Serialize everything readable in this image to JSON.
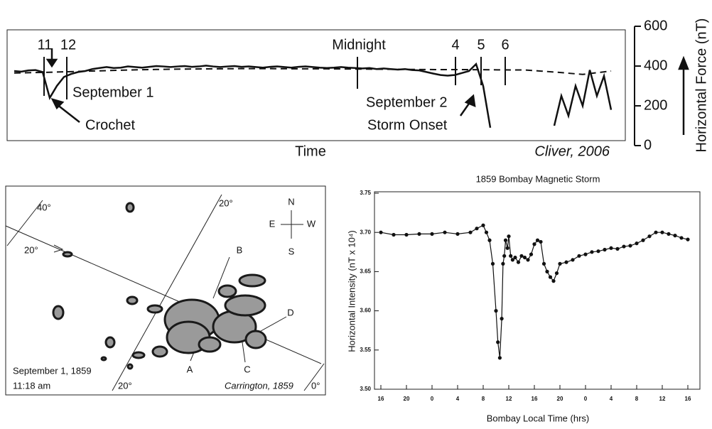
{
  "chart_data": [
    {
      "type": "line",
      "x_label": "Time",
      "y_label": "Horizontal Force (nT)",
      "credit": "Cliver, 2006",
      "event_labels": [
        "11",
        "12",
        "Midnight",
        "4",
        "5",
        "6"
      ],
      "annotations": [
        "September 1",
        "Crochet",
        "September 2",
        "Storm Onset"
      ],
      "ylim": [
        0,
        600
      ],
      "yticks": [
        0,
        200,
        400,
        600
      ],
      "series": [
        {
          "color": "#111111",
          "style": "solid",
          "values": [
            375,
            372,
            378,
            380,
            370,
            240,
            300,
            345,
            360,
            370,
            375,
            385,
            390,
            395,
            390,
            392,
            398,
            395,
            392,
            396,
            400,
            398,
            395,
            398,
            400,
            396,
            398,
            402,
            398,
            395,
            398,
            400,
            396,
            398,
            395,
            392,
            396,
            398,
            395,
            392,
            396,
            398,
            395,
            392,
            390,
            392,
            395,
            392,
            390,
            388,
            390,
            385,
            388,
            385,
            382,
            385,
            380,
            378,
            370,
            362,
            355,
            352,
            355,
            365,
            375,
            410,
            300,
            90,
            null,
            null,
            null,
            null,
            null,
            null,
            null,
            null,
            100,
            250,
            150,
            300,
            200,
            380,
            250,
            350,
            180
          ]
        },
        {
          "color": "#111111",
          "style": "dashed",
          "values": [
            365,
            368,
            372,
            376,
            380,
            383,
            385,
            386,
            387,
            387,
            386,
            386,
            385,
            384,
            383,
            382,
            382,
            381,
            380,
            370,
            358,
            375
          ]
        }
      ]
    },
    {
      "type": "line",
      "title": "1859 Bombay Magnetic Storm",
      "x_label": "Bombay Local Time (hrs)",
      "y_label": "Horizontal Intensity (nT x 10⁴)",
      "color": "#111111",
      "xlim": [
        0,
        48
      ],
      "xticks": [
        {
          "value": 0,
          "label": "16"
        },
        {
          "value": 4,
          "label": "20"
        },
        {
          "value": 8,
          "label": "0"
        },
        {
          "value": 12,
          "label": "4"
        },
        {
          "value": 16,
          "label": "8"
        },
        {
          "value": 20,
          "label": "12"
        },
        {
          "value": 24,
          "label": "16"
        },
        {
          "value": 28,
          "label": "20"
        },
        {
          "value": 32,
          "label": "0"
        },
        {
          "value": 36,
          "label": "4"
        },
        {
          "value": 40,
          "label": "8"
        },
        {
          "value": 44,
          "label": "12"
        },
        {
          "value": 48,
          "label": "16"
        }
      ],
      "ylim": [
        3.5,
        3.75
      ],
      "yticks": [
        {
          "value": 3.5,
          "label": "3.50"
        },
        3.55,
        {
          "value": 3.6,
          "label": "3.60"
        },
        3.65,
        {
          "value": 3.7,
          "label": "3.70"
        },
        3.75
      ],
      "x": [
        0,
        2,
        4,
        6,
        8,
        10,
        12,
        14,
        15,
        16,
        16.5,
        17,
        17.5,
        18,
        18.3,
        18.6,
        18.9,
        19.1,
        19.3,
        19.5,
        19.8,
        20,
        20.3,
        20.6,
        21,
        21.5,
        22,
        22.5,
        23,
        23.5,
        24,
        24.5,
        25,
        25.5,
        26,
        26.5,
        27,
        27.5,
        28,
        29,
        30,
        31,
        32,
        33,
        34,
        35,
        36,
        37,
        38,
        39,
        40,
        41,
        42,
        43,
        44,
        45,
        46,
        47,
        48
      ],
      "values": [
        3.7,
        3.697,
        3.697,
        3.698,
        3.698,
        3.7,
        3.698,
        3.7,
        3.705,
        3.709,
        3.7,
        3.69,
        3.66,
        3.6,
        3.56,
        3.54,
        3.59,
        3.66,
        3.67,
        3.69,
        3.68,
        3.695,
        3.67,
        3.665,
        3.668,
        3.662,
        3.67,
        3.668,
        3.665,
        3.672,
        3.685,
        3.69,
        3.688,
        3.66,
        3.65,
        3.643,
        3.638,
        3.648,
        3.66,
        3.662,
        3.665,
        3.67,
        3.672,
        3.675,
        3.676,
        3.678,
        3.68,
        3.679,
        3.682,
        3.683,
        3.686,
        3.69,
        3.695,
        3.7,
        3.7,
        3.698,
        3.696,
        3.693,
        3.691
      ]
    }
  ],
  "drawing": {
    "labels": [
      "40°",
      "20°",
      "20°",
      "N",
      "E",
      "W",
      "S",
      "B",
      "D",
      "A",
      "C",
      "September 1, 1859",
      "11:18 am",
      "Carrington, 1859",
      "20°",
      "0°"
    ]
  }
}
